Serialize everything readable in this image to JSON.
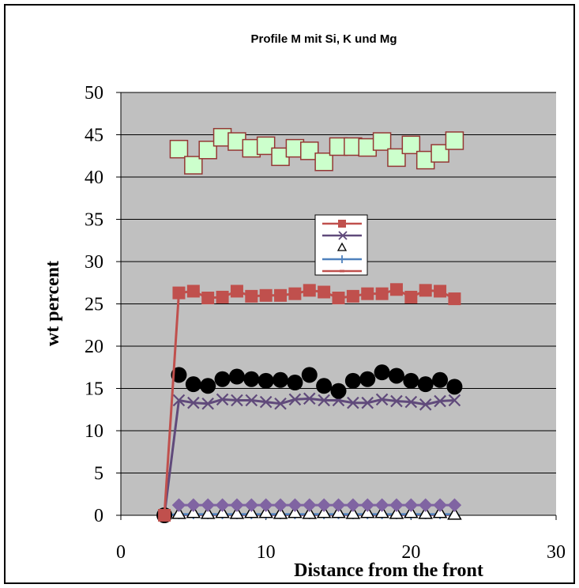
{
  "chart_data": {
    "type": "line",
    "title": "Profile M mit Si, K und Mg",
    "xlabel": "Distance from the front",
    "ylabel": "wt percent",
    "xlim": [
      0,
      30
    ],
    "ylim": [
      0,
      50
    ],
    "xticks": [
      "0",
      "10",
      "20",
      "30"
    ],
    "yticks": [
      "0",
      "5",
      "10",
      "15",
      "20",
      "25",
      "30",
      "35",
      "40",
      "45",
      "50"
    ],
    "grid": "horizontal",
    "plot_background": "#c0c0c0",
    "legend": "center, entries without text",
    "x": [
      3,
      4,
      5,
      6,
      7,
      8,
      9,
      10,
      11,
      12,
      13,
      14,
      15,
      16,
      17,
      18,
      19,
      20,
      21,
      22,
      23
    ],
    "series": [
      {
        "color": "#c0504d",
        "marker": "square-light-green",
        "line": false,
        "values": [
          null,
          43.3,
          41.4,
          43.2,
          44.7,
          44.2,
          43.4,
          43.7,
          42.4,
          43.4,
          43.1,
          41.8,
          43.6,
          43.6,
          43.5,
          44.2,
          42.3,
          43.8,
          42.0,
          42.8,
          44.3
        ]
      },
      {
        "color": "#c0504d",
        "marker": "square",
        "line": true,
        "values": [
          0,
          26.3,
          26.5,
          25.7,
          25.8,
          26.5,
          25.9,
          26.0,
          26.0,
          26.2,
          26.6,
          26.4,
          25.7,
          25.9,
          26.2,
          26.2,
          26.7,
          25.8,
          26.6,
          26.5,
          25.6
        ]
      },
      {
        "color": "#000000",
        "marker": "circle",
        "line": false,
        "values": [
          0,
          16.6,
          15.5,
          15.3,
          16.1,
          16.4,
          16.1,
          15.9,
          16.0,
          15.7,
          16.6,
          15.3,
          14.7,
          15.9,
          16.1,
          16.9,
          16.5,
          15.9,
          15.5,
          16.0,
          15.2
        ]
      },
      {
        "color": "#604a7b",
        "marker": "x",
        "line": true,
        "values": [
          0,
          13.6,
          13.3,
          13.2,
          13.7,
          13.6,
          13.6,
          13.4,
          13.2,
          13.7,
          13.8,
          13.6,
          13.6,
          13.3,
          13.3,
          13.7,
          13.5,
          13.4,
          13.1,
          13.5,
          13.6
        ]
      },
      {
        "color": "#8064a2",
        "marker": "diamond",
        "line": true,
        "values": [
          null,
          1.2,
          1.2,
          1.2,
          1.2,
          1.2,
          1.2,
          1.2,
          1.2,
          1.2,
          1.2,
          1.2,
          1.2,
          1.2,
          1.2,
          1.2,
          1.2,
          1.2,
          1.2,
          1.2,
          1.2
        ]
      },
      {
        "color": "#000000",
        "marker": "triangle-open",
        "line": false,
        "values": [
          null,
          0.2,
          0.3,
          0.2,
          0.3,
          0.2,
          0.3,
          0.3,
          0.2,
          0.3,
          0.2,
          0.3,
          0.3,
          0.2,
          0.3,
          0.3,
          0.2,
          0.3,
          0.2,
          0.3,
          0.1
        ]
      },
      {
        "color": "#4f81bd",
        "marker": "plus",
        "line": true,
        "values": [
          0,
          0.1,
          0.1,
          0.1,
          0.1,
          0.1,
          0.1,
          0.1,
          0.1,
          0.1,
          0.1,
          0.1,
          0.1,
          0.1,
          0.1,
          0.1,
          0.1,
          0.1,
          0.1,
          0.1,
          0.1
        ]
      },
      {
        "color": "#c0504d",
        "marker": "dash",
        "line": true,
        "values": [
          0,
          0.05,
          0.05,
          0.05,
          0.05,
          0.05,
          0.05,
          0.05,
          0.05,
          0.05,
          0.05,
          0.05,
          0.05,
          0.05,
          0.05,
          0.05,
          0.05,
          0.05,
          0.05,
          0.05,
          0.05
        ]
      }
    ],
    "legend_entries": [
      {
        "color": "#c0504d",
        "marker": "square"
      },
      {
        "color": "#604a7b",
        "marker": "x"
      },
      {
        "color": "#000000",
        "marker": "triangle-open"
      },
      {
        "color": "#4f81bd",
        "marker": "plus"
      },
      {
        "color": "#c0504d",
        "marker": "dash"
      }
    ]
  }
}
